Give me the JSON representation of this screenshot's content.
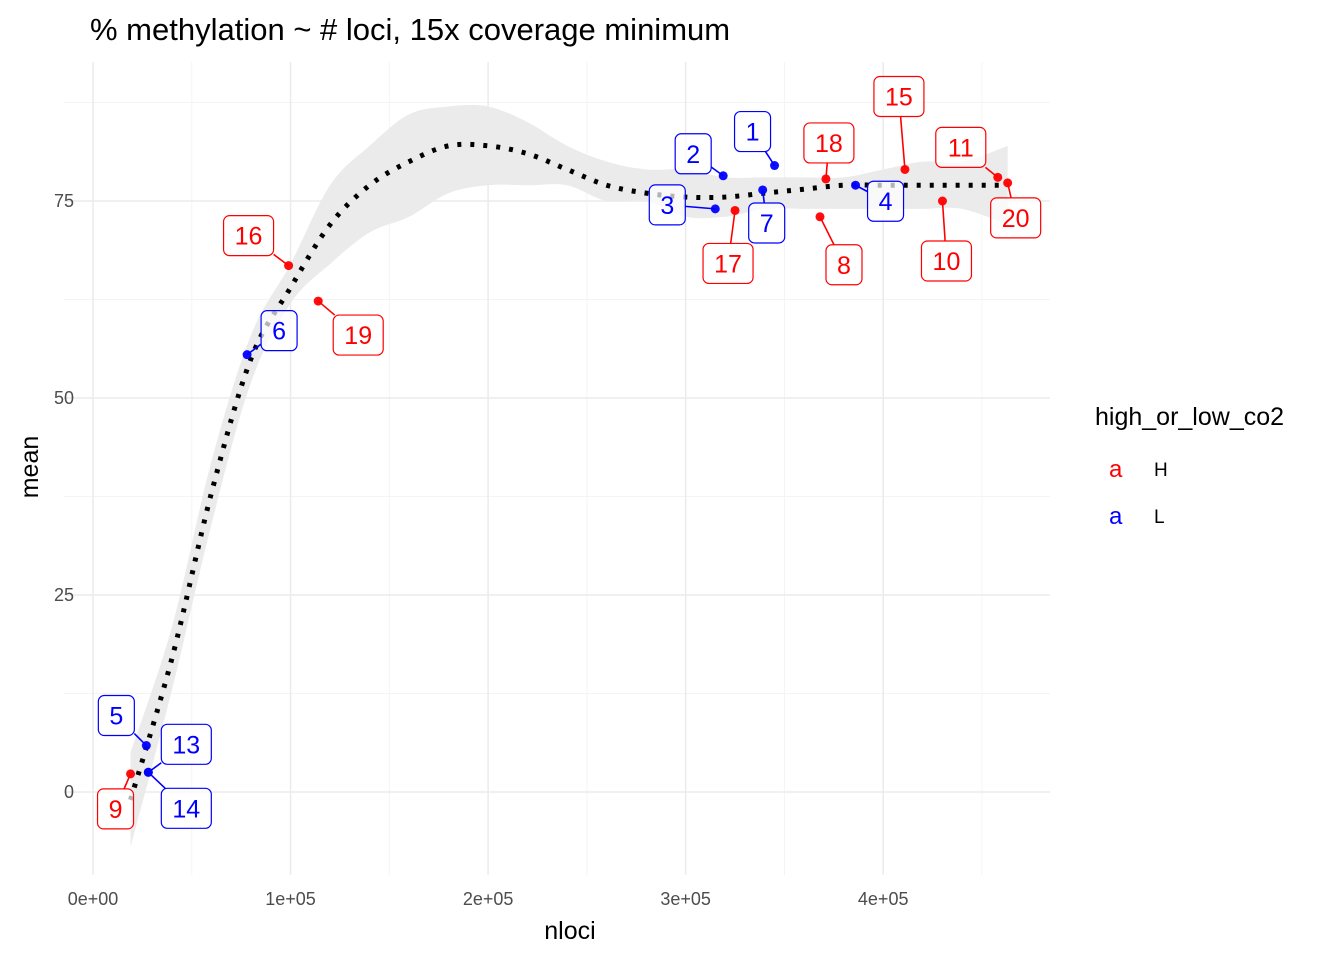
{
  "chart_data": {
    "type": "scatter",
    "title": "% methylation ~ # loci, 15x coverage minimum",
    "xlabel": "nloci",
    "ylabel": "mean",
    "xlim": [
      -6000,
      484000
    ],
    "ylim": [
      -10,
      92
    ],
    "x_ticks": [
      0,
      100000,
      200000,
      300000,
      400000
    ],
    "x_tick_labels": [
      "0e+00",
      "1e+05",
      "2e+05",
      "3e+05",
      "4e+05"
    ],
    "y_ticks": [
      0,
      25,
      50,
      75
    ],
    "y_tick_labels": [
      "0",
      "25",
      "50",
      "75"
    ],
    "grid": true,
    "legend": {
      "title": "high_or_low_co2",
      "position": "right",
      "key_glyph": "a",
      "entries": [
        {
          "label": "H",
          "color": "#ff0000"
        },
        {
          "label": "L",
          "color": "#0000ff"
        }
      ]
    },
    "colors": {
      "H": "#ff0000",
      "L": "#0000ff"
    },
    "points": [
      {
        "label": "1",
        "group": "L",
        "x": 345000,
        "y": 79.5
      },
      {
        "label": "2",
        "group": "L",
        "x": 319000,
        "y": 78.2
      },
      {
        "label": "3",
        "group": "L",
        "x": 315000,
        "y": 74.0
      },
      {
        "label": "4",
        "group": "L",
        "x": 386000,
        "y": 77.0
      },
      {
        "label": "5",
        "group": "L",
        "x": 27000,
        "y": 5.9
      },
      {
        "label": "6",
        "group": "L",
        "x": 78000,
        "y": 55.5
      },
      {
        "label": "7",
        "group": "L",
        "x": 339000,
        "y": 76.4
      },
      {
        "label": "8",
        "group": "H",
        "x": 368000,
        "y": 73.0
      },
      {
        "label": "9",
        "group": "H",
        "x": 19000,
        "y": 2.3
      },
      {
        "label": "10",
        "group": "H",
        "x": 430000,
        "y": 75.0
      },
      {
        "label": "11",
        "group": "H",
        "x": 458000,
        "y": 78.0
      },
      {
        "label": "13",
        "group": "L",
        "x": 28000,
        "y": 2.5
      },
      {
        "label": "14",
        "group": "L",
        "x": 28000,
        "y": 2.5
      },
      {
        "label": "15",
        "group": "H",
        "x": 411000,
        "y": 79.0
      },
      {
        "label": "16",
        "group": "H",
        "x": 99000,
        "y": 66.8
      },
      {
        "label": "17",
        "group": "H",
        "x": 325000,
        "y": 73.8
      },
      {
        "label": "18",
        "group": "H",
        "x": 371000,
        "y": 77.8
      },
      {
        "label": "19",
        "group": "H",
        "x": 114000,
        "y": 62.3
      },
      {
        "label": "20",
        "group": "H",
        "x": 463000,
        "y": 77.3
      }
    ],
    "smooth": {
      "x": [
        19000,
        40000,
        60000,
        80000,
        100000,
        120000,
        140000,
        160000,
        180000,
        200000,
        220000,
        240000,
        260000,
        280000,
        300000,
        320000,
        340000,
        360000,
        380000,
        400000,
        420000,
        440000,
        463000
      ],
      "y": [
        -1,
        17,
        38,
        55,
        64,
        72,
        77,
        80,
        82,
        82,
        81,
        79,
        77,
        76,
        75.5,
        75.5,
        76,
        76.5,
        77,
        77,
        77,
        77,
        77
      ],
      "lower": [
        -7,
        13,
        34,
        52,
        62,
        67,
        71,
        73,
        76,
        77,
        77,
        77,
        75,
        75,
        73,
        73,
        74,
        74,
        74,
        74,
        74,
        74,
        72
      ],
      "upper": [
        5,
        21,
        42,
        58,
        67,
        77,
        82,
        86,
        87,
        87,
        85,
        82,
        80,
        79,
        79,
        78,
        78,
        78,
        78,
        79,
        80,
        80,
        82
      ]
    }
  }
}
